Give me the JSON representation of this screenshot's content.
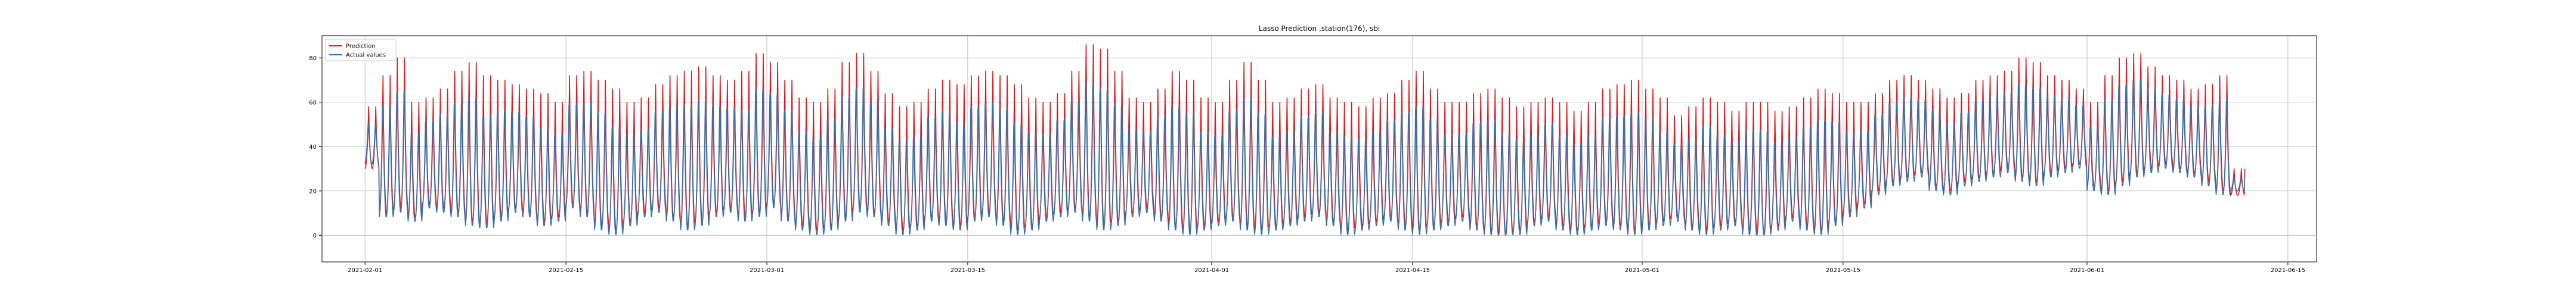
{
  "chart_data": {
    "type": "line",
    "title": "Lasso Prediction ,station(176), sbi",
    "xlabel": "",
    "ylabel": "",
    "x_range": [
      "2021-01-29",
      "2021-06-17"
    ],
    "ylim": [
      -12,
      90
    ],
    "grid": true,
    "legend_position": "top-left",
    "x_ticks": [
      "2021-02-01",
      "2021-02-15",
      "2021-03-01",
      "2021-03-15",
      "2021-04-01",
      "2021-04-15",
      "2021-05-01",
      "2021-05-15",
      "2021-06-01",
      "2021-06-15"
    ],
    "y_ticks": [
      0,
      20,
      40,
      60,
      80
    ],
    "data_start": "2021-02-01",
    "data_end": "2021-06-11",
    "series": [
      {
        "name": "Prediction",
        "color": "#e8141a",
        "x": [
          "2021-02-01",
          "2021-02-02",
          "2021-02-03",
          "2021-02-04",
          "2021-02-05",
          "2021-02-06",
          "2021-02-07",
          "2021-02-08",
          "2021-02-09",
          "2021-02-10",
          "2021-02-11",
          "2021-02-12",
          "2021-02-13",
          "2021-02-14",
          "2021-02-15",
          "2021-02-16",
          "2021-02-17",
          "2021-02-18",
          "2021-02-19",
          "2021-02-20",
          "2021-02-21",
          "2021-02-22",
          "2021-02-23",
          "2021-02-24",
          "2021-02-25",
          "2021-02-26",
          "2021-02-27",
          "2021-02-28",
          "2021-03-01",
          "2021-03-02",
          "2021-03-03",
          "2021-03-04",
          "2021-03-05",
          "2021-03-06",
          "2021-03-07",
          "2021-03-08",
          "2021-03-09",
          "2021-03-10",
          "2021-03-11",
          "2021-03-12",
          "2021-03-13",
          "2021-03-14",
          "2021-03-15",
          "2021-03-16",
          "2021-03-17",
          "2021-03-18",
          "2021-03-19",
          "2021-03-20",
          "2021-03-21",
          "2021-03-22",
          "2021-03-23",
          "2021-03-24",
          "2021-03-25",
          "2021-03-26",
          "2021-03-27",
          "2021-03-28",
          "2021-03-29",
          "2021-03-30",
          "2021-03-31",
          "2021-04-01",
          "2021-04-02",
          "2021-04-03",
          "2021-04-04",
          "2021-04-05",
          "2021-04-06",
          "2021-04-07",
          "2021-04-08",
          "2021-04-09",
          "2021-04-10",
          "2021-04-11",
          "2021-04-12",
          "2021-04-13",
          "2021-04-14",
          "2021-04-15",
          "2021-04-16",
          "2021-04-17",
          "2021-04-18",
          "2021-04-19",
          "2021-04-20",
          "2021-04-21",
          "2021-04-22",
          "2021-04-23",
          "2021-04-24",
          "2021-04-25",
          "2021-04-26",
          "2021-04-27",
          "2021-04-28",
          "2021-04-29",
          "2021-04-30",
          "2021-05-01",
          "2021-05-02",
          "2021-05-03",
          "2021-05-04",
          "2021-05-05",
          "2021-05-06",
          "2021-05-07",
          "2021-05-08",
          "2021-05-09",
          "2021-05-10",
          "2021-05-11",
          "2021-05-12",
          "2021-05-13",
          "2021-05-14",
          "2021-05-15",
          "2021-05-16",
          "2021-05-17",
          "2021-05-18",
          "2021-05-19",
          "2021-05-20",
          "2021-05-21",
          "2021-05-22",
          "2021-05-23",
          "2021-05-24",
          "2021-05-25",
          "2021-05-26",
          "2021-05-27",
          "2021-05-28",
          "2021-05-29",
          "2021-05-30",
          "2021-05-31",
          "2021-06-01",
          "2021-06-02",
          "2021-06-03",
          "2021-06-04",
          "2021-06-05",
          "2021-06-06",
          "2021-06-07",
          "2021-06-08",
          "2021-06-09",
          "2021-06-10",
          "2021-06-11"
        ],
        "min": [
          30,
          10,
          12,
          8,
          14,
          12,
          10,
          6,
          5,
          8,
          12,
          10,
          6,
          8,
          14,
          10,
          4,
          2,
          6,
          10,
          12,
          8,
          4,
          6,
          10,
          12,
          8,
          10,
          14,
          8,
          4,
          2,
          4,
          8,
          12,
          10,
          6,
          2,
          4,
          8,
          6,
          4,
          8,
          10,
          6,
          2,
          4,
          8,
          10,
          12,
          8,
          4,
          6,
          10,
          12,
          8,
          4,
          2,
          4,
          6,
          8,
          4,
          2,
          4,
          6,
          8,
          10,
          6,
          2,
          4,
          6,
          8,
          4,
          2,
          4,
          6,
          8,
          4,
          2,
          0,
          2,
          6,
          8,
          4,
          2,
          4,
          6,
          4,
          2,
          4,
          6,
          8,
          4,
          2,
          4,
          6,
          2,
          0,
          4,
          8,
          4,
          2,
          6,
          10,
          14,
          20,
          24,
          26,
          28,
          22,
          20,
          24,
          26,
          28,
          30,
          26,
          24,
          28,
          30,
          32,
          22,
          20,
          24,
          28,
          30,
          32,
          30,
          28,
          24,
          20,
          18
        ],
        "max": [
          58,
          72,
          80,
          60,
          62,
          66,
          74,
          78,
          72,
          70,
          68,
          66,
          64,
          60,
          72,
          74,
          70,
          66,
          60,
          62,
          68,
          72,
          74,
          76,
          72,
          70,
          74,
          82,
          78,
          70,
          62,
          60,
          66,
          78,
          82,
          74,
          64,
          58,
          60,
          66,
          70,
          68,
          72,
          74,
          72,
          68,
          62,
          60,
          64,
          74,
          86,
          84,
          74,
          62,
          60,
          66,
          74,
          70,
          62,
          60,
          70,
          78,
          70,
          60,
          62,
          66,
          68,
          62,
          60,
          58,
          62,
          64,
          70,
          74,
          66,
          60,
          60,
          64,
          66,
          62,
          58,
          60,
          62,
          60,
          56,
          60,
          66,
          68,
          70,
          66,
          62,
          54,
          58,
          62,
          60,
          56,
          60,
          60,
          56,
          58,
          62,
          66,
          64,
          60,
          60,
          64,
          70,
          72,
          70,
          66,
          62,
          64,
          70,
          72,
          74,
          80,
          78,
          72,
          70,
          66,
          60,
          72,
          80,
          82,
          76,
          72,
          70,
          66,
          68,
          72,
          30
        ],
        "end_value": 30
      },
      {
        "name": "Actual values",
        "color": "#3b6fa6",
        "x": [
          "2021-02-01",
          "2021-02-02",
          "2021-02-03",
          "2021-02-04",
          "2021-02-05",
          "2021-02-06",
          "2021-02-07",
          "2021-02-08",
          "2021-02-09",
          "2021-02-10",
          "2021-02-11",
          "2021-02-12",
          "2021-02-13",
          "2021-02-14",
          "2021-02-15",
          "2021-02-16",
          "2021-02-17",
          "2021-02-18",
          "2021-02-19",
          "2021-02-20",
          "2021-02-21",
          "2021-02-22",
          "2021-02-23",
          "2021-02-24",
          "2021-02-25",
          "2021-02-26",
          "2021-02-27",
          "2021-02-28",
          "2021-03-01",
          "2021-03-02",
          "2021-03-03",
          "2021-03-04",
          "2021-03-05",
          "2021-03-06",
          "2021-03-07",
          "2021-03-08",
          "2021-03-09",
          "2021-03-10",
          "2021-03-11",
          "2021-03-12",
          "2021-03-13",
          "2021-03-14",
          "2021-03-15",
          "2021-03-16",
          "2021-03-17",
          "2021-03-18",
          "2021-03-19",
          "2021-03-20",
          "2021-03-21",
          "2021-03-22",
          "2021-03-23",
          "2021-03-24",
          "2021-03-25",
          "2021-03-26",
          "2021-03-27",
          "2021-03-28",
          "2021-03-29",
          "2021-03-30",
          "2021-03-31",
          "2021-04-01",
          "2021-04-02",
          "2021-04-03",
          "2021-04-04",
          "2021-04-05",
          "2021-04-06",
          "2021-04-07",
          "2021-04-08",
          "2021-04-09",
          "2021-04-10",
          "2021-04-11",
          "2021-04-12",
          "2021-04-13",
          "2021-04-14",
          "2021-04-15",
          "2021-04-16",
          "2021-04-17",
          "2021-04-18",
          "2021-04-19",
          "2021-04-20",
          "2021-04-21",
          "2021-04-22",
          "2021-04-23",
          "2021-04-24",
          "2021-04-25",
          "2021-04-26",
          "2021-04-27",
          "2021-04-28",
          "2021-04-29",
          "2021-04-30",
          "2021-05-01",
          "2021-05-02",
          "2021-05-03",
          "2021-05-04",
          "2021-05-05",
          "2021-05-06",
          "2021-05-07",
          "2021-05-08",
          "2021-05-09",
          "2021-05-10",
          "2021-05-11",
          "2021-05-12",
          "2021-05-13",
          "2021-05-14",
          "2021-05-15",
          "2021-05-16",
          "2021-05-17",
          "2021-05-18",
          "2021-05-19",
          "2021-05-20",
          "2021-05-21",
          "2021-05-22",
          "2021-05-23",
          "2021-05-24",
          "2021-05-25",
          "2021-05-26",
          "2021-05-27",
          "2021-05-28",
          "2021-05-29",
          "2021-05-30",
          "2021-05-31",
          "2021-06-01",
          "2021-06-02",
          "2021-06-03",
          "2021-06-04",
          "2021-06-05",
          "2021-06-06",
          "2021-06-07",
          "2021-06-08",
          "2021-06-09",
          "2021-06-10",
          "2021-06-11"
        ],
        "min": [
          32,
          8,
          10,
          6,
          12,
          10,
          8,
          4,
          3,
          6,
          10,
          8,
          4,
          6,
          12,
          8,
          2,
          0,
          4,
          8,
          10,
          6,
          2,
          4,
          8,
          10,
          6,
          8,
          12,
          6,
          2,
          0,
          2,
          6,
          10,
          8,
          4,
          0,
          2,
          6,
          4,
          2,
          6,
          8,
          4,
          0,
          2,
          6,
          8,
          10,
          6,
          2,
          4,
          8,
          10,
          6,
          2,
          0,
          2,
          4,
          6,
          2,
          0,
          2,
          4,
          6,
          8,
          4,
          0,
          2,
          4,
          6,
          2,
          0,
          2,
          4,
          6,
          2,
          0,
          0,
          0,
          4,
          6,
          2,
          0,
          2,
          4,
          2,
          0,
          2,
          4,
          6,
          2,
          0,
          2,
          4,
          0,
          0,
          2,
          6,
          2,
          0,
          4,
          8,
          12,
          18,
          22,
          24,
          26,
          20,
          18,
          22,
          24,
          26,
          28,
          24,
          22,
          26,
          28,
          30,
          20,
          18,
          22,
          26,
          28,
          30,
          28,
          26,
          22,
          18,
          20
        ],
        "max": [
          56,
          74,
          82,
          58,
          64,
          68,
          76,
          80,
          70,
          72,
          70,
          68,
          62,
          58,
          74,
          76,
          72,
          64,
          58,
          60,
          70,
          74,
          76,
          78,
          74,
          72,
          72,
          84,
          80,
          72,
          60,
          58,
          68,
          80,
          84,
          76,
          62,
          56,
          58,
          68,
          72,
          66,
          74,
          76,
          74,
          66,
          60,
          58,
          66,
          76,
          88,
          86,
          76,
          60,
          58,
          68,
          76,
          72,
          60,
          58,
          72,
          80,
          72,
          58,
          60,
          68,
          70,
          60,
          58,
          56,
          60,
          66,
          72,
          76,
          68,
          58,
          58,
          66,
          68,
          60,
          56,
          58,
          64,
          58,
          54,
          58,
          68,
          70,
          72,
          68,
          60,
          52,
          56,
          64,
          58,
          54,
          62,
          62,
          54,
          56,
          64,
          68,
          66,
          58,
          58,
          66,
          72,
          74,
          72,
          68,
          60,
          66,
          72,
          74,
          76,
          82,
          80,
          74,
          72,
          68,
          58,
          74,
          82,
          84,
          78,
          74,
          72,
          68,
          70,
          74,
          28
        ],
        "end_value": 28
      }
    ]
  }
}
